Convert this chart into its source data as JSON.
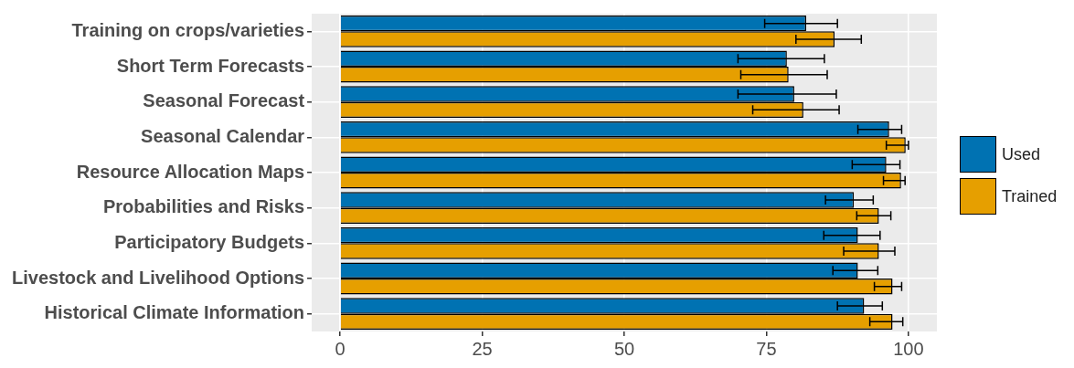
{
  "chart_data": {
    "type": "bar",
    "orientation": "horizontal",
    "categories": [
      "Training on crops/varieties",
      "Short Term Forecasts",
      "Seasonal Forecast",
      "Seasonal Calendar",
      "Resource Allocation Maps",
      "Probabilities and Risks",
      "Participatory Budgets",
      "Livestock and Livelihood Options",
      "Historical Climate Information"
    ],
    "series": [
      {
        "name": "Used",
        "color": "#0072b2",
        "values": [
          82.0,
          78.6,
          79.9,
          96.6,
          96.1,
          90.4,
          91.1,
          91.1,
          92.2
        ],
        "errors": [
          [
            74.7,
            87.5
          ],
          [
            70.0,
            85.2
          ],
          [
            70.0,
            87.3
          ],
          [
            91.1,
            98.8
          ],
          [
            90.1,
            98.5
          ],
          [
            85.4,
            93.8
          ],
          [
            85.1,
            95.0
          ],
          [
            86.7,
            94.6
          ],
          [
            87.5,
            95.4
          ]
        ]
      },
      {
        "name": "Trained",
        "color": "#e69f00",
        "values": [
          87.0,
          78.9,
          81.5,
          99.5,
          98.7,
          94.8,
          94.8,
          97.2,
          97.2
        ],
        "errors": [
          [
            80.2,
            91.7
          ],
          [
            70.5,
            85.7
          ],
          [
            72.6,
            87.8
          ],
          [
            96.1,
            100.0
          ],
          [
            95.6,
            99.4
          ],
          [
            90.9,
            96.9
          ],
          [
            88.6,
            97.6
          ],
          [
            94.0,
            98.8
          ],
          [
            93.2,
            99.0
          ]
        ]
      }
    ],
    "xlim": [
      -5,
      105
    ],
    "xticks": [
      0,
      25,
      50,
      75,
      100
    ],
    "grid": true,
    "legend": "right"
  }
}
